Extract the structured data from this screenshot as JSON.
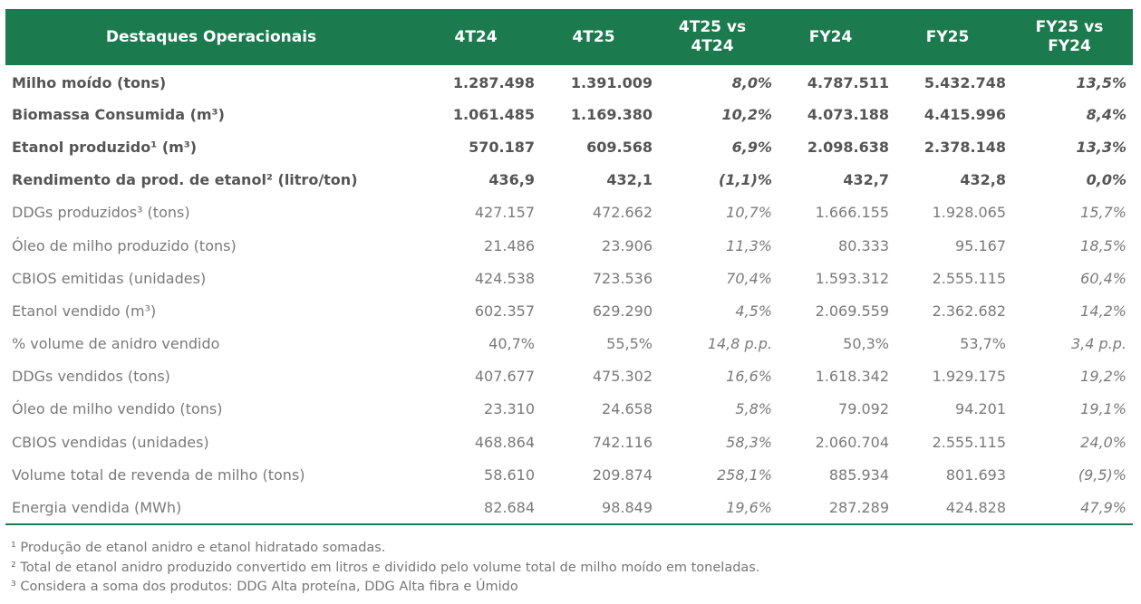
{
  "table": {
    "header": [
      "Destaques Operacionais",
      "4T24",
      "4T25",
      "4T25 vs 4T24",
      "FY24",
      "FY25",
      "FY25 vs FY24"
    ],
    "rows": [
      [
        "Milho moído (tons)",
        "1.287.498",
        "1.391.009",
        "8,0%",
        "4.787.511",
        "5.432.748",
        "13,5%"
      ],
      [
        "Biomassa Consumida (m³)",
        "1.061.485",
        "1.169.380",
        "10,2%",
        "4.073.188",
        "4.415.996",
        "8,4%"
      ],
      [
        "Etanol produzido¹ (m³)",
        "570.187",
        "609.568",
        "6,9%",
        "2.098.638",
        "2.378.148",
        "13,3%"
      ],
      [
        "Rendimento da prod. de etanol² (litro/ton)",
        "436,9",
        "432,1",
        "(1,1)%",
        "432,7",
        "432,8",
        "0,0%"
      ],
      [
        "DDGs produzidos³ (tons)",
        "427.157",
        "472.662",
        "10,7%",
        "1.666.155",
        "1.928.065",
        "15,7%"
      ],
      [
        "Óleo de milho produzido (tons)",
        "21.486",
        "23.906",
        "11,3%",
        "80.333",
        "95.167",
        "18,5%"
      ],
      [
        "CBIOS emitidas (unidades)",
        "424.538",
        "723.536",
        "70,4%",
        "1.593.312",
        "2.555.115",
        "60,4%"
      ],
      [
        "Etanol vendido (m³)",
        "602.357",
        "629.290",
        "4,5%",
        "2.069.559",
        "2.362.682",
        "14,2%"
      ],
      [
        "% volume de anidro vendido",
        "40,7%",
        "55,5%",
        "14,8 p.p.",
        "50,3%",
        "53,7%",
        "3,4 p.p."
      ],
      [
        "DDGs vendidos (tons)",
        "407.677",
        "475.302",
        "16,6%",
        "1.618.342",
        "1.929.175",
        "19,2%"
      ],
      [
        "Óleo de milho vendido (tons)",
        "23.310",
        "24.658",
        "5,8%",
        "79.092",
        "94.201",
        "19,1%"
      ],
      [
        "CBIOS vendidas (unidades)",
        "468.864",
        "742.116",
        "58,3%",
        "2.060.704",
        "2.555.115",
        "24,0%"
      ],
      [
        "Volume total de revenda de milho (tons)",
        "58.610",
        "209.874",
        "258,1%",
        "885.934",
        "801.693",
        "(9,5)%"
      ],
      [
        "Energia vendida (MWh)",
        "82.684",
        "98.849",
        "19,6%",
        "287.289",
        "424.828",
        "47,9%"
      ]
    ]
  },
  "footnotes": [
    "¹ Produção de etanol anidro e etanol hidratado somadas.",
    "² Total de etanol anidro produzido convertido em litros e dividido pelo volume total de milho moído em toneladas.",
    "³ Considera a soma dos produtos: DDG Alta proteína, DDG Alta fibra e Úmido"
  ]
}
